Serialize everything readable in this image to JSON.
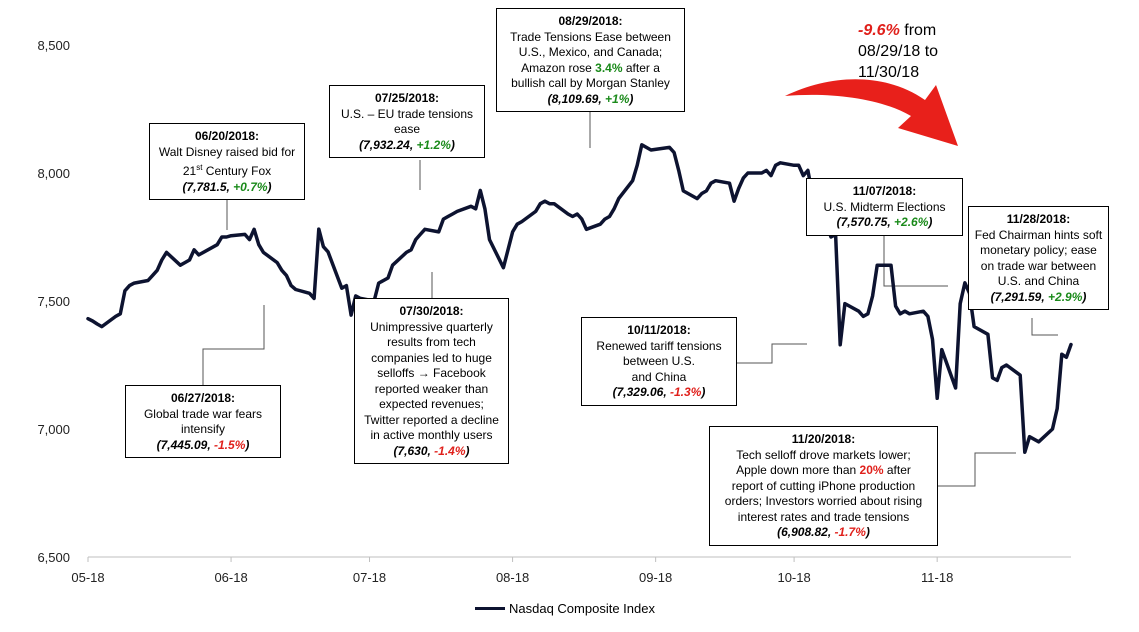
{
  "chart_data": {
    "type": "line",
    "title": "",
    "xlabel": "",
    "ylabel": "",
    "ylim": [
      6500,
      8500
    ],
    "yticks": [
      6500,
      7000,
      7500,
      8000,
      8500
    ],
    "ytick_labels": [
      "6,500",
      "7,000",
      "7,500",
      "8,000",
      "8,500"
    ],
    "xtick_labels": [
      "05-18",
      "06-18",
      "07-18",
      "08-18",
      "09-18",
      "10-18",
      "11-18"
    ],
    "xtick_dates": [
      "2018-05-01",
      "2018-06-01",
      "2018-07-01",
      "2018-08-01",
      "2018-09-01",
      "2018-10-01",
      "2018-11-01"
    ],
    "grid": false,
    "legend_position": "bottom",
    "series": [
      {
        "name": "Nasdaq Composite Index",
        "color": "#0d1330",
        "x": [
          "2018-05-01",
          "2018-05-02",
          "2018-05-03",
          "2018-05-04",
          "2018-05-07",
          "2018-05-08",
          "2018-05-09",
          "2018-05-10",
          "2018-05-11",
          "2018-05-14",
          "2018-05-15",
          "2018-05-16",
          "2018-05-17",
          "2018-05-18",
          "2018-05-21",
          "2018-05-22",
          "2018-05-23",
          "2018-05-24",
          "2018-05-25",
          "2018-05-29",
          "2018-05-30",
          "2018-05-31",
          "2018-06-01",
          "2018-06-04",
          "2018-06-05",
          "2018-06-06",
          "2018-06-07",
          "2018-06-08",
          "2018-06-11",
          "2018-06-12",
          "2018-06-13",
          "2018-06-14",
          "2018-06-15",
          "2018-06-18",
          "2018-06-19",
          "2018-06-20",
          "2018-06-21",
          "2018-06-22",
          "2018-06-25",
          "2018-06-26",
          "2018-06-27",
          "2018-06-28",
          "2018-06-29",
          "2018-07-02",
          "2018-07-03",
          "2018-07-05",
          "2018-07-06",
          "2018-07-09",
          "2018-07-10",
          "2018-07-11",
          "2018-07-12",
          "2018-07-13",
          "2018-07-16",
          "2018-07-17",
          "2018-07-18",
          "2018-07-19",
          "2018-07-20",
          "2018-07-23",
          "2018-07-24",
          "2018-07-25",
          "2018-07-26",
          "2018-07-27",
          "2018-07-30",
          "2018-07-31",
          "2018-08-01",
          "2018-08-02",
          "2018-08-03",
          "2018-08-06",
          "2018-08-07",
          "2018-08-08",
          "2018-08-09",
          "2018-08-10",
          "2018-08-13",
          "2018-08-14",
          "2018-08-15",
          "2018-08-16",
          "2018-08-17",
          "2018-08-20",
          "2018-08-21",
          "2018-08-22",
          "2018-08-23",
          "2018-08-24",
          "2018-08-27",
          "2018-08-28",
          "2018-08-29",
          "2018-08-30",
          "2018-08-31",
          "2018-09-04",
          "2018-09-05",
          "2018-09-06",
          "2018-09-07",
          "2018-09-10",
          "2018-09-11",
          "2018-09-12",
          "2018-09-13",
          "2018-09-14",
          "2018-09-17",
          "2018-09-18",
          "2018-09-19",
          "2018-09-20",
          "2018-09-21",
          "2018-09-24",
          "2018-09-25",
          "2018-09-26",
          "2018-09-27",
          "2018-09-28",
          "2018-10-01",
          "2018-10-02",
          "2018-10-03",
          "2018-10-04",
          "2018-10-05",
          "2018-10-08",
          "2018-10-09",
          "2018-10-10",
          "2018-10-11",
          "2018-10-12",
          "2018-10-15",
          "2018-10-16",
          "2018-10-17",
          "2018-10-18",
          "2018-10-19",
          "2018-10-22",
          "2018-10-23",
          "2018-10-24",
          "2018-10-25",
          "2018-10-26",
          "2018-10-29",
          "2018-10-30",
          "2018-10-31",
          "2018-11-01",
          "2018-11-02",
          "2018-11-05",
          "2018-11-06",
          "2018-11-07",
          "2018-11-08",
          "2018-11-09",
          "2018-11-12",
          "2018-11-13",
          "2018-11-14",
          "2018-11-15",
          "2018-11-16",
          "2018-11-19",
          "2018-11-20",
          "2018-11-21",
          "2018-11-23",
          "2018-11-26",
          "2018-11-27",
          "2018-11-28",
          "2018-11-29",
          "2018-11-30"
        ],
        "values": [
          7431,
          7422,
          7410,
          7400,
          7440,
          7450,
          7540,
          7560,
          7570,
          7580,
          7600,
          7620,
          7660,
          7690,
          7640,
          7650,
          7660,
          7700,
          7680,
          7720,
          7750,
          7750,
          7755,
          7760,
          7740,
          7780,
          7720,
          7690,
          7650,
          7620,
          7600,
          7560,
          7545,
          7530,
          7510,
          7781,
          7712,
          7692,
          7550,
          7560,
          7445,
          7520,
          7510,
          7500,
          7570,
          7590,
          7640,
          7690,
          7700,
          7740,
          7760,
          7780,
          7770,
          7820,
          7830,
          7840,
          7850,
          7870,
          7860,
          7932,
          7860,
          7740,
          7630,
          7700,
          7770,
          7800,
          7810,
          7850,
          7880,
          7890,
          7880,
          7880,
          7840,
          7830,
          7840,
          7820,
          7780,
          7800,
          7820,
          7830,
          7860,
          7900,
          7970,
          8030,
          8110,
          8100,
          8090,
          8100,
          8080,
          8010,
          7930,
          7900,
          7920,
          7930,
          7960,
          7970,
          7960,
          7890,
          7940,
          7980,
          8000,
          8000,
          8010,
          7990,
          8030,
          8040,
          8030,
          8030,
          7990,
          8010,
          7910,
          7800,
          7750,
          7760,
          7329,
          7490,
          7460,
          7440,
          7450,
          7520,
          7640,
          7640,
          7480,
          7450,
          7460,
          7450,
          7460,
          7440,
          7350,
          7120,
          7310,
          7160,
          7490,
          7571,
          7530,
          7400,
          7370,
          7200,
          7190,
          7240,
          7250,
          7210,
          6909,
          6970,
          6950,
          7000,
          7080,
          7292,
          7280,
          7330
        ]
      }
    ],
    "annotations": [
      {
        "date": "06/20/2018:",
        "text": "Walt Disney raised bid for 21st Century Fox",
        "value": "7,781.5",
        "change": "+0.7%"
      },
      {
        "date": "06/27/2018:",
        "text": "Global trade war fears intensify",
        "value": "7,445.09",
        "change": "-1.5%"
      },
      {
        "date": "07/25/2018:",
        "text": "U.S. – EU trade tensions ease",
        "value": "7,932.24",
        "change": "+1.2%"
      },
      {
        "date": "07/30/2018:",
        "text": "Unimpressive quarterly results from tech companies led to huge selloffs → Facebook reported weaker than expected revenues; Twitter reported a decline in active monthly users",
        "value": "7,630",
        "change": "-1.4%"
      },
      {
        "date": "08/29/2018:",
        "text": "Trade Tensions Ease between U.S., Mexico, and Canada; Amazon rose 3.4% after a bullish call by Morgan Stanley",
        "value": "8,109.69",
        "change": "+1%"
      },
      {
        "date": "10/11/2018:",
        "text": "Renewed tariff tensions between U.S. and China",
        "value": "7,329.06",
        "change": "-1.3%"
      },
      {
        "date": "11/07/2018:",
        "text": "U.S. Midterm Elections",
        "value": "7,570.75",
        "change": "+2.6%"
      },
      {
        "date": "11/20/2018:",
        "text": "Tech selloff drove markets lower; Apple down more than 20% after report of cutting iPhone production orders; Investors worried about rising interest rates and trade tensions",
        "value": "6,908.82",
        "change": "-1.7%"
      },
      {
        "date": "11/28/2018:",
        "text": "Fed Chairman hints soft monetary policy; ease on trade war between U.S. and China",
        "value": "7,291.59",
        "change": "+2.9%"
      }
    ]
  },
  "page": {
    "legend_label": "Nasdaq Composite Index",
    "note": {
      "pct": "-9.6%",
      "line1": " from",
      "line2": "08/29/18 to",
      "line3": "11/30/18"
    },
    "arrow_color": "#e8201b"
  },
  "callouts": {
    "c0620": {
      "date": "06/20/2018:",
      "l1": "Walt Disney raised bid for",
      "l2a": "21",
      "l2sup": "st",
      "l2b": " Century Fox",
      "val": "7,781.5",
      "chg": "+0.7%"
    },
    "c0627": {
      "date": "06/27/2018:",
      "l1": "Global trade war fears",
      "l2": "intensify",
      "val": "7,445.09",
      "chg": "-1.5%"
    },
    "c0725": {
      "date": "07/25/2018:",
      "l1": "U.S. – EU trade tensions",
      "l2": "ease",
      "val": "7,932.24",
      "chg": "+1.2%"
    },
    "c0730": {
      "date": "07/30/2018:",
      "l1": "Unimpressive quarterly",
      "l2": "results from tech",
      "l3": "companies led to huge",
      "l4": "selloffs → Facebook",
      "l5": "reported weaker than",
      "l6": "expected revenues;",
      "l7": "Twitter reported a decline",
      "l8": "in active monthly users",
      "val": "7,630",
      "chg": "-1.4%"
    },
    "c0829": {
      "date": "08/29/2018:",
      "l1": "Trade Tensions Ease between",
      "l2": "U.S., Mexico, and Canada;",
      "l3a": "Amazon rose ",
      "l3pct": "3.4%",
      "l3b": " after a",
      "l4": "bullish call by Morgan Stanley",
      "val": "8,109.69",
      "chg": "+1%"
    },
    "c1011": {
      "date": "10/11/2018:",
      "l1": "Renewed tariff tensions",
      "l2": "between U.S.",
      "l3": "and China",
      "val": "7,329.06",
      "chg": "-1.3%"
    },
    "c1107": {
      "date": "11/07/2018:",
      "l1": "U.S. Midterm Elections",
      "val": "7,570.75",
      "chg": "+2.6%"
    },
    "c1120": {
      "date": "11/20/2018:",
      "l1": "Tech selloff drove markets lower;",
      "l2a": "Apple down more than ",
      "l2pct": "20%",
      "l2b": " after",
      "l3": "report of cutting iPhone production",
      "l4": "orders; Investors worried about rising",
      "l5": "interest rates and trade tensions",
      "val": "6,908.82",
      "chg": "-1.7%"
    },
    "c1128": {
      "date": "11/28/2018:",
      "l1": "Fed Chairman hints soft",
      "l2": "monetary policy; ease",
      "l3": "on trade war between",
      "l4": "U.S. and China",
      "val": "7,291.59",
      "chg": "+2.9%"
    }
  }
}
